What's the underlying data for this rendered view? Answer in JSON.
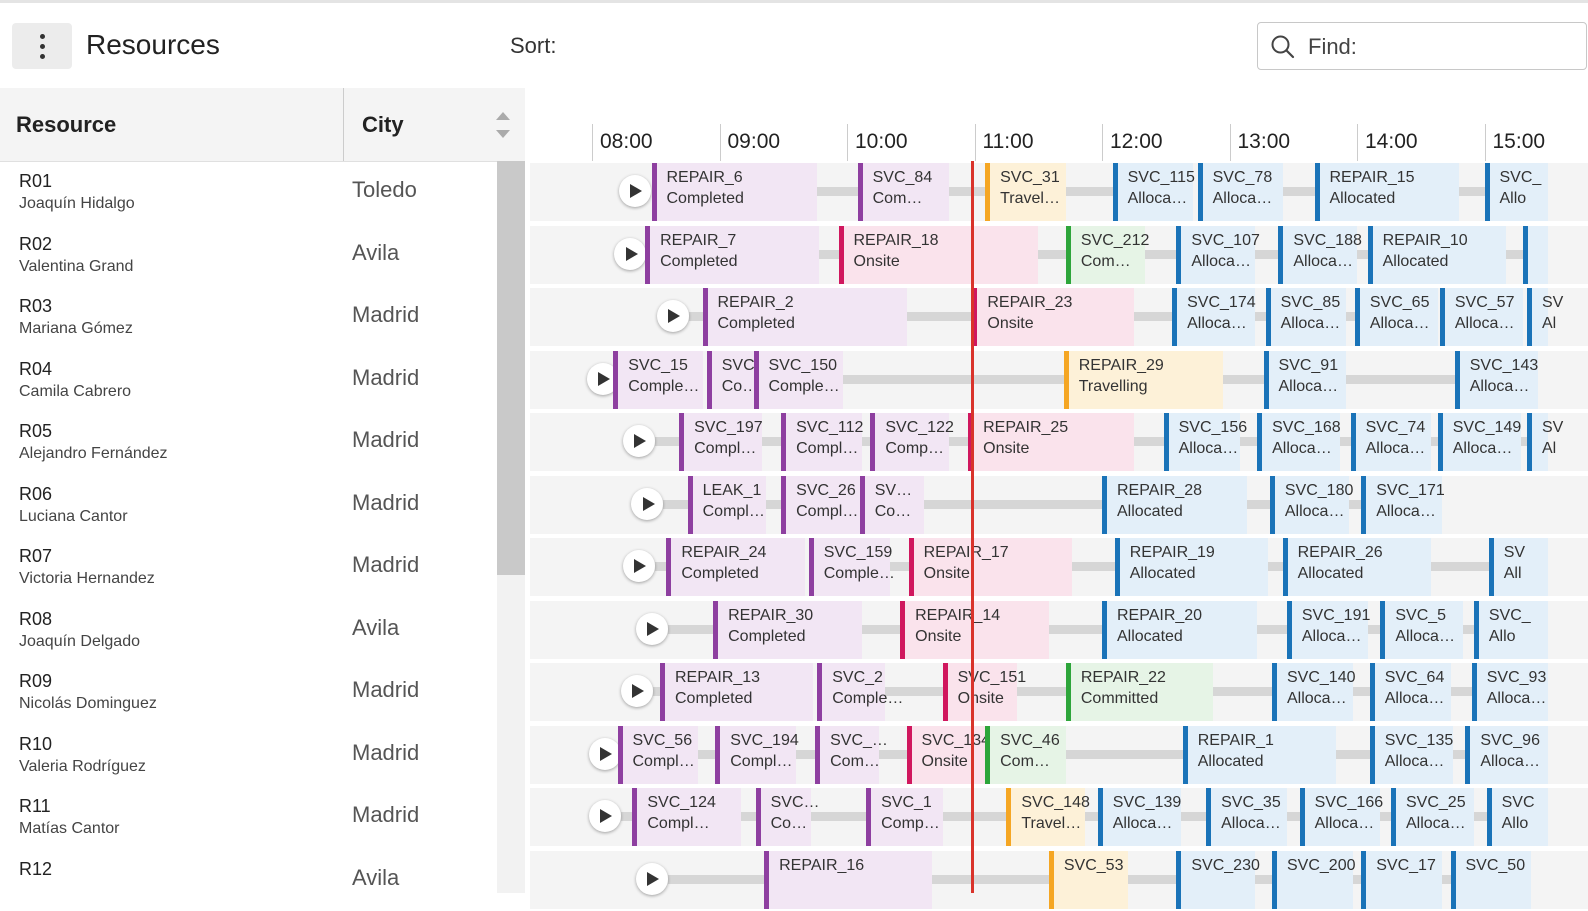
{
  "header": {
    "title": "Resources",
    "sort_label": "Sort:",
    "find_placeholder": "Find:"
  },
  "columns": {
    "resource": "Resource",
    "city": "City"
  },
  "colors": {
    "completed": "#8e3fa0",
    "onsite": "#d0175e",
    "travelling": "#f5a623",
    "allocated": "#1a73b8",
    "committed": "#2da53a",
    "current_time": "#d9332b"
  },
  "timeline": [
    "08:00",
    "09:00",
    "10:00",
    "11:00",
    "12:00",
    "13:00",
    "14:00",
    "15:00"
  ],
  "resources": [
    {
      "id": "R01",
      "name": "Joaquín Hidalgo",
      "city": "Toledo"
    },
    {
      "id": "R02",
      "name": "Valentina Grand",
      "city": "Avila"
    },
    {
      "id": "R03",
      "name": "Mariana Gómez",
      "city": "Madrid"
    },
    {
      "id": "R04",
      "name": "Camila Cabrero",
      "city": "Madrid"
    },
    {
      "id": "R05",
      "name": "Alejandro Fernández",
      "city": "Madrid"
    },
    {
      "id": "R06",
      "name": "Luciana Cantor",
      "city": "Madrid"
    },
    {
      "id": "R07",
      "name": "Victoria Hernandez",
      "city": "Madrid"
    },
    {
      "id": "R08",
      "name": "Joaquín Delgado",
      "city": "Avila"
    },
    {
      "id": "R09",
      "name": "Nicolás Dominguez",
      "city": "Madrid"
    },
    {
      "id": "R10",
      "name": "Valeria Rodríguez",
      "city": "Madrid"
    },
    {
      "id": "R11",
      "name": "Matías Cantor",
      "city": "Madrid"
    },
    {
      "id": "R12",
      "name": "",
      "city": "Avila"
    }
  ],
  "schedule": [
    {
      "play": "08:20",
      "tasks": [
        {
          "name": "REPAIR_6",
          "status": "Completed",
          "type": "completed",
          "start": "08:28",
          "end": "09:46"
        },
        {
          "name": "SVC_84",
          "status": "Com…",
          "type": "completed",
          "start": "10:05",
          "end": "10:48"
        },
        {
          "name": "SVC_31",
          "status": "Travel…",
          "type": "travelling",
          "start": "11:05",
          "end": "11:43"
        },
        {
          "name": "SVC_115",
          "status": "Alloca…",
          "type": "allocated",
          "start": "12:05",
          "end": "12:43"
        },
        {
          "name": "SVC_78",
          "status": "Alloca…",
          "type": "allocated",
          "start": "12:45",
          "end": "13:25"
        },
        {
          "name": "REPAIR_15",
          "status": "Allocated",
          "type": "allocated",
          "start": "13:40",
          "end": "14:48"
        },
        {
          "name": "SVC_",
          "status": "Allo",
          "type": "allocated",
          "start": "15:00",
          "end": "15:30"
        }
      ]
    },
    {
      "play": "08:18",
      "tasks": [
        {
          "name": "REPAIR_7",
          "status": "Completed",
          "type": "completed",
          "start": "08:25",
          "end": "09:47"
        },
        {
          "name": "REPAIR_18",
          "status": "Onsite",
          "type": "onsite",
          "start": "09:56",
          "end": "11:30"
        },
        {
          "name": "SVC_212",
          "status": "Com…",
          "type": "committed",
          "start": "11:43",
          "end": "12:20"
        },
        {
          "name": "SVC_107",
          "status": "Alloca…",
          "type": "allocated",
          "start": "12:35",
          "end": "13:12"
        },
        {
          "name": "SVC_188",
          "status": "Alloca…",
          "type": "allocated",
          "start": "13:23",
          "end": "14:00"
        },
        {
          "name": "REPAIR_10",
          "status": "Allocated",
          "type": "allocated",
          "start": "14:05",
          "end": "15:10"
        },
        {
          "name": "",
          "status": "",
          "type": "allocated",
          "start": "15:18",
          "end": "15:30"
        }
      ]
    },
    {
      "play": "08:38",
      "tasks": [
        {
          "name": "REPAIR_2",
          "status": "Completed",
          "type": "completed",
          "start": "08:52",
          "end": "10:28"
        },
        {
          "name": "REPAIR_23",
          "status": "Onsite",
          "type": "onsite",
          "start": "10:59",
          "end": "12:15"
        },
        {
          "name": "SVC_174",
          "status": "Alloca…",
          "type": "allocated",
          "start": "12:33",
          "end": "13:12"
        },
        {
          "name": "SVC_85",
          "status": "Alloca…",
          "type": "allocated",
          "start": "13:17",
          "end": "13:55"
        },
        {
          "name": "SVC_65",
          "status": "Alloca…",
          "type": "allocated",
          "start": "13:59",
          "end": "14:38"
        },
        {
          "name": "SVC_57",
          "status": "Alloca…",
          "type": "allocated",
          "start": "14:39",
          "end": "15:18"
        },
        {
          "name": "SV",
          "status": "Al",
          "type": "allocated",
          "start": "15:20",
          "end": "15:30"
        }
      ]
    },
    {
      "play": "08:05",
      "tasks": [
        {
          "name": "SVC_15",
          "status": "Comple…",
          "type": "completed",
          "start": "08:10",
          "end": "08:52"
        },
        {
          "name": "SVC…",
          "status": "Co…",
          "type": "completed",
          "start": "08:54",
          "end": "09:17"
        },
        {
          "name": "SVC_150",
          "status": "Comple…",
          "type": "completed",
          "start": "09:16",
          "end": "09:58"
        },
        {
          "name": "REPAIR_29",
          "status": "Travelling",
          "type": "travelling",
          "start": "11:42",
          "end": "12:57"
        },
        {
          "name": "SVC_91",
          "status": "Alloca…",
          "type": "allocated",
          "start": "13:16",
          "end": "13:55"
        },
        {
          "name": "SVC_143",
          "status": "Alloca…",
          "type": "allocated",
          "start": "14:46",
          "end": "15:25"
        }
      ]
    },
    {
      "play": "08:22",
      "tasks": [
        {
          "name": "SVC_197",
          "status": "Compl…",
          "type": "completed",
          "start": "08:41",
          "end": "09:20"
        },
        {
          "name": "SVC_112",
          "status": "Compl…",
          "type": "completed",
          "start": "09:29",
          "end": "10:07"
        },
        {
          "name": "SVC_122",
          "status": "Comp…",
          "type": "completed",
          "start": "10:11",
          "end": "10:48"
        },
        {
          "name": "REPAIR_25",
          "status": "Onsite",
          "type": "onsite",
          "start": "10:57",
          "end": "12:15"
        },
        {
          "name": "SVC_156",
          "status": "Alloca…",
          "type": "allocated",
          "start": "12:29",
          "end": "13:05"
        },
        {
          "name": "SVC_168",
          "status": "Alloca…",
          "type": "allocated",
          "start": "13:13",
          "end": "13:52"
        },
        {
          "name": "SVC_74",
          "status": "Alloca…",
          "type": "allocated",
          "start": "13:57",
          "end": "14:35"
        },
        {
          "name": "SVC_149",
          "status": "Alloca…",
          "type": "allocated",
          "start": "14:38",
          "end": "15:17"
        },
        {
          "name": "SV",
          "status": "Al",
          "type": "allocated",
          "start": "15:20",
          "end": "15:30"
        }
      ]
    },
    {
      "play": "08:26",
      "tasks": [
        {
          "name": "LEAK_1",
          "status": "Compl…",
          "type": "completed",
          "start": "08:45",
          "end": "09:22"
        },
        {
          "name": "SVC_26",
          "status": "Compl…",
          "type": "completed",
          "start": "09:29",
          "end": "10:06"
        },
        {
          "name": "SV…",
          "status": "Co…",
          "type": "completed",
          "start": "10:06",
          "end": "10:36"
        },
        {
          "name": "REPAIR_28",
          "status": "Allocated",
          "type": "allocated",
          "start": "12:00",
          "end": "13:08"
        },
        {
          "name": "SVC_180",
          "status": "Alloca…",
          "type": "allocated",
          "start": "13:19",
          "end": "13:56"
        },
        {
          "name": "SVC_171",
          "status": "Alloca…",
          "type": "allocated",
          "start": "14:02",
          "end": "14:40"
        }
      ]
    },
    {
      "play": "08:22",
      "tasks": [
        {
          "name": "REPAIR_24",
          "status": "Completed",
          "type": "completed",
          "start": "08:35",
          "end": "09:40"
        },
        {
          "name": "SVC_159",
          "status": "Comple…",
          "type": "completed",
          "start": "09:42",
          "end": "10:20"
        },
        {
          "name": "REPAIR_17",
          "status": "Onsite",
          "type": "onsite",
          "start": "10:29",
          "end": "11:46"
        },
        {
          "name": "REPAIR_19",
          "status": "Allocated",
          "type": "allocated",
          "start": "12:06",
          "end": "13:18"
        },
        {
          "name": "REPAIR_26",
          "status": "Allocated",
          "type": "allocated",
          "start": "13:25",
          "end": "14:35"
        },
        {
          "name": "SV",
          "status": "All",
          "type": "allocated",
          "start": "15:02",
          "end": "15:30"
        }
      ]
    },
    {
      "play": "08:28",
      "tasks": [
        {
          "name": "REPAIR_30",
          "status": "Completed",
          "type": "completed",
          "start": "08:57",
          "end": "10:07"
        },
        {
          "name": "REPAIR_14",
          "status": "Onsite",
          "type": "onsite",
          "start": "10:25",
          "end": "11:35"
        },
        {
          "name": "REPAIR_20",
          "status": "Allocated",
          "type": "allocated",
          "start": "12:00",
          "end": "13:13"
        },
        {
          "name": "SVC_191",
          "status": "Alloca…",
          "type": "allocated",
          "start": "13:27",
          "end": "14:05"
        },
        {
          "name": "SVC_5",
          "status": "Alloca…",
          "type": "allocated",
          "start": "14:11",
          "end": "14:50"
        },
        {
          "name": "SVC_",
          "status": "Allo",
          "type": "allocated",
          "start": "14:55",
          "end": "15:30"
        }
      ]
    },
    {
      "play": "08:21",
      "tasks": [
        {
          "name": "REPAIR_13",
          "status": "Completed",
          "type": "completed",
          "start": "08:32",
          "end": "09:44"
        },
        {
          "name": "SVC_2",
          "status": "Comple…",
          "type": "completed",
          "start": "09:46",
          "end": "10:18"
        },
        {
          "name": "SVC_151",
          "status": "Onsite",
          "type": "onsite",
          "start": "10:45",
          "end": "11:20"
        },
        {
          "name": "REPAIR_22",
          "status": "Committed",
          "type": "committed",
          "start": "11:43",
          "end": "12:52"
        },
        {
          "name": "SVC_140",
          "status": "Alloca…",
          "type": "allocated",
          "start": "13:20",
          "end": "13:58"
        },
        {
          "name": "SVC_64",
          "status": "Alloca…",
          "type": "allocated",
          "start": "14:06",
          "end": "14:44"
        },
        {
          "name": "SVC_93",
          "status": "Alloca…",
          "type": "allocated",
          "start": "14:54",
          "end": "15:30"
        }
      ]
    },
    {
      "play": "08:06",
      "tasks": [
        {
          "name": "SVC_56",
          "status": "Compl…",
          "type": "completed",
          "start": "08:12",
          "end": "08:50"
        },
        {
          "name": "SVC_194",
          "status": "Compl…",
          "type": "completed",
          "start": "08:58",
          "end": "09:36"
        },
        {
          "name": "SVC_…",
          "status": "Com…",
          "type": "completed",
          "start": "09:45",
          "end": "10:15"
        },
        {
          "name": "SVC_134",
          "status": "Onsite",
          "type": "onsite",
          "start": "10:28",
          "end": "11:05"
        },
        {
          "name": "SVC_46",
          "status": "Com…",
          "type": "committed",
          "start": "11:05",
          "end": "11:43"
        },
        {
          "name": "REPAIR_1",
          "status": "Allocated",
          "type": "allocated",
          "start": "12:38",
          "end": "13:50"
        },
        {
          "name": "SVC_135",
          "status": "Alloca…",
          "type": "allocated",
          "start": "14:06",
          "end": "14:45"
        },
        {
          "name": "SVC_96",
          "status": "Alloca…",
          "type": "allocated",
          "start": "14:51",
          "end": "15:30"
        }
      ]
    },
    {
      "play": "08:06",
      "tasks": [
        {
          "name": "SVC_124",
          "status": "Compl…",
          "type": "completed",
          "start": "08:19",
          "end": "09:10"
        },
        {
          "name": "SVC…",
          "status": "Co…",
          "type": "completed",
          "start": "09:17",
          "end": "09:43"
        },
        {
          "name": "SVC_1",
          "status": "Comp…",
          "type": "completed",
          "start": "10:09",
          "end": "10:45"
        },
        {
          "name": "SVC_148",
          "status": "Travel…",
          "type": "travelling",
          "start": "11:15",
          "end": "11:52"
        },
        {
          "name": "SVC_139",
          "status": "Alloca…",
          "type": "allocated",
          "start": "11:58",
          "end": "12:37"
        },
        {
          "name": "SVC_35",
          "status": "Alloca…",
          "type": "allocated",
          "start": "12:49",
          "end": "13:27"
        },
        {
          "name": "SVC_166",
          "status": "Alloca…",
          "type": "allocated",
          "start": "13:33",
          "end": "14:11"
        },
        {
          "name": "SVC_25",
          "status": "Alloca…",
          "type": "allocated",
          "start": "14:16",
          "end": "14:55"
        },
        {
          "name": "SVC",
          "status": "Allo",
          "type": "allocated",
          "start": "15:01",
          "end": "15:30"
        }
      ]
    },
    {
      "play": "08:28",
      "tasks": [
        {
          "name": "REPAIR_16",
          "status": "",
          "type": "completed",
          "start": "09:21",
          "end": "10:40"
        },
        {
          "name": "SVC_53",
          "status": "",
          "type": "travelling",
          "start": "11:35",
          "end": "12:12"
        },
        {
          "name": "SVC_230",
          "status": "",
          "type": "allocated",
          "start": "12:35",
          "end": "13:12"
        },
        {
          "name": "SVC_200",
          "status": "",
          "type": "allocated",
          "start": "13:20",
          "end": "13:58"
        },
        {
          "name": "SVC_17",
          "status": "",
          "type": "allocated",
          "start": "14:02",
          "end": "14:40"
        },
        {
          "name": "SVC_50",
          "status": "",
          "type": "allocated",
          "start": "14:44",
          "end": "15:22"
        }
      ]
    }
  ]
}
